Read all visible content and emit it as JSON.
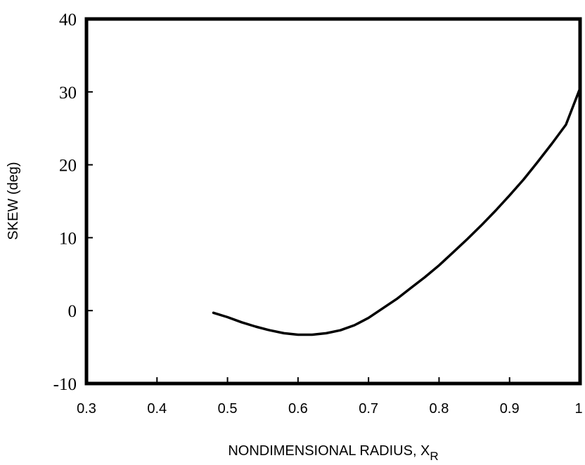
{
  "chart_data": {
    "type": "line",
    "title": "",
    "xlabel": "NONDIMENSIONAL RADIUS, X",
    "xlabel_subscript": "R",
    "ylabel": "SKEW (deg)",
    "xlim": [
      0.3,
      1.0
    ],
    "ylim": [
      -10,
      40
    ],
    "xticks": [
      "0.3",
      "0.4",
      "0.5",
      "0.6",
      "0.7",
      "0.8",
      "0.9",
      "1"
    ],
    "yticks": [
      "-10",
      "0",
      "10",
      "20",
      "30",
      "40"
    ],
    "grid": false,
    "legend": "none",
    "line_color": "#000000",
    "series": [
      {
        "x": [
          0.48,
          0.5,
          0.52,
          0.54,
          0.56,
          0.58,
          0.6,
          0.62,
          0.64,
          0.66,
          0.68,
          0.7,
          0.72,
          0.74,
          0.76,
          0.78,
          0.8,
          0.82,
          0.84,
          0.86,
          0.88,
          0.9,
          0.92,
          0.94,
          0.96,
          0.98,
          1.0
        ],
        "y": [
          -0.3,
          -0.9,
          -1.6,
          -2.2,
          -2.7,
          -3.1,
          -3.3,
          -3.3,
          -3.1,
          -2.7,
          -2.0,
          -1.0,
          0.3,
          1.6,
          3.1,
          4.6,
          6.2,
          8.0,
          9.8,
          11.7,
          13.7,
          15.8,
          18.0,
          20.4,
          22.9,
          25.5,
          30.5
        ]
      }
    ]
  }
}
